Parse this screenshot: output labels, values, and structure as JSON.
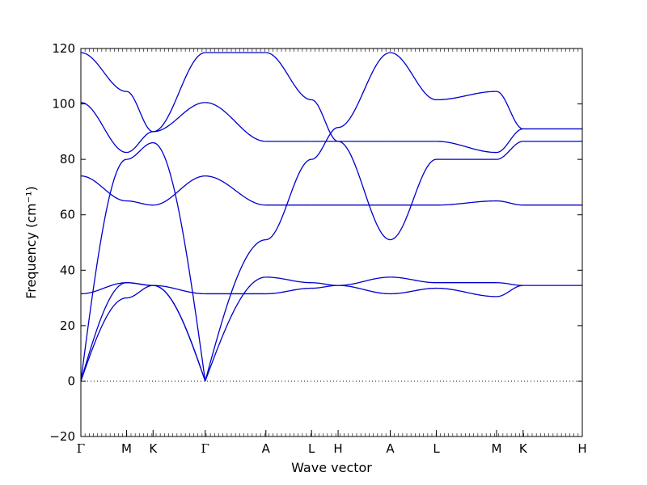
{
  "chart_data": {
    "type": "line",
    "xlabel": "Wave vector",
    "ylabel": "Frequency (cm⁻¹)",
    "ylim": [
      -20,
      120
    ],
    "xlim": [
      0,
      1.0
    ],
    "y_ticks": [
      -20,
      0,
      20,
      40,
      60,
      80,
      100,
      120
    ],
    "zero_line": "dotted",
    "grid": false,
    "line_color": "#0000cc",
    "x_ticks": [
      {
        "label": "Γ",
        "x": 0.0
      },
      {
        "label": "M",
        "x": 0.091
      },
      {
        "label": "K",
        "x": 0.144
      },
      {
        "label": "Γ",
        "x": 0.248
      },
      {
        "label": "A",
        "x": 0.369
      },
      {
        "label": "L",
        "x": 0.46
      },
      {
        "label": "H",
        "x": 0.513
      },
      {
        "label": "A",
        "x": 0.617
      },
      {
        "label": "L",
        "x": 0.709
      },
      {
        "label": "M",
        "x": 0.829
      },
      {
        "label": "K",
        "x": 0.882
      },
      {
        "label": "H",
        "x": 1.0
      }
    ],
    "segments": [
      {
        "name": "Γ-M",
        "x_range": [
          0.0,
          0.091
        ],
        "bands": [
          {
            "start": 0,
            "end": 30.0,
            "shape": "acoustic"
          },
          {
            "start": 0,
            "end": 35.5,
            "shape": "acoustic"
          },
          {
            "start": 0,
            "end": 80.0,
            "shape": "acoustic"
          },
          {
            "start": 31.5,
            "end": 35.5
          },
          {
            "start": 74.0,
            "end": 65.0
          },
          {
            "start": 100.5,
            "end": 82.5
          },
          {
            "start": 118.5,
            "end": 104.5
          }
        ]
      },
      {
        "name": "M-K",
        "x_range": [
          0.091,
          0.144
        ],
        "bands": [
          {
            "start": 30.0,
            "end": 34.5
          },
          {
            "start": 35.5,
            "end": 34.5
          },
          {
            "start": 80.0,
            "end": 86.0
          },
          {
            "start": 35.5,
            "end": 34.5
          },
          {
            "start": 65.0,
            "end": 63.5
          },
          {
            "start": 82.5,
            "end": 90.0
          },
          {
            "start": 104.5,
            "end": 90.0
          }
        ]
      },
      {
        "name": "K-Γ",
        "x_range": [
          0.144,
          0.248
        ],
        "bands": [
          {
            "start": 34.5,
            "end": 0,
            "shape": "acoustic-rev"
          },
          {
            "start": 34.5,
            "end": 0,
            "shape": "acoustic-rev"
          },
          {
            "start": 86.0,
            "end": 0,
            "shape": "acoustic-rev"
          },
          {
            "start": 34.5,
            "end": 31.5
          },
          {
            "start": 63.5,
            "end": 74.0
          },
          {
            "start": 90.0,
            "end": 100.5
          },
          {
            "start": 90.0,
            "end": 118.5
          }
        ]
      },
      {
        "name": "Γ-A",
        "x_range": [
          0.248,
          0.369
        ],
        "bands": [
          {
            "start": 0,
            "end": 37.5,
            "shape": "acoustic"
          },
          {
            "start": 0,
            "end": 51.0,
            "shape": "acoustic"
          },
          {
            "start": 118.5,
            "end": 118.5
          },
          {
            "start": 31.5,
            "end": 31.5
          },
          {
            "start": 74.0,
            "end": 63.5
          },
          {
            "start": 100.5,
            "end": 86.5
          }
        ]
      },
      {
        "name": "A-L",
        "x_range": [
          0.369,
          0.46
        ],
        "bands": [
          {
            "start": 37.5,
            "end": 35.5
          },
          {
            "start": 31.5,
            "end": 33.5
          },
          {
            "start": 51.0,
            "end": 80.0
          },
          {
            "start": 118.5,
            "end": 101.5
          },
          {
            "start": 63.5,
            "end": 63.5
          },
          {
            "start": 86.5,
            "end": 86.5
          }
        ]
      },
      {
        "name": "L-H",
        "x_range": [
          0.46,
          0.513
        ],
        "bands": [
          {
            "start": 35.5,
            "end": 34.5
          },
          {
            "start": 33.5,
            "end": 34.5
          },
          {
            "start": 80.0,
            "end": 91.5
          },
          {
            "start": 101.5,
            "end": 86.5
          },
          {
            "start": 63.5,
            "end": 63.5
          },
          {
            "start": 86.5,
            "end": 86.5
          }
        ]
      },
      {
        "name": "H-A",
        "x_range": [
          0.513,
          0.617
        ],
        "bands": [
          {
            "start": 34.5,
            "end": 37.5
          },
          {
            "start": 34.5,
            "end": 31.5
          },
          {
            "start": 91.5,
            "end": 118.5
          },
          {
            "start": 86.5,
            "end": 51.0
          },
          {
            "start": 63.5,
            "end": 63.5
          },
          {
            "start": 86.5,
            "end": 86.5
          }
        ]
      },
      {
        "name": "A-L",
        "x_range": [
          0.617,
          0.709
        ],
        "bands": [
          {
            "start": 37.5,
            "end": 35.5
          },
          {
            "start": 31.5,
            "end": 33.5
          },
          {
            "start": 118.5,
            "end": 101.5
          },
          {
            "start": 51.0,
            "end": 80.0
          },
          {
            "start": 63.5,
            "end": 63.5
          },
          {
            "start": 86.5,
            "end": 86.5
          }
        ]
      },
      {
        "name": "L-M",
        "x_range": [
          0.709,
          0.829
        ],
        "bands": [
          {
            "start": 35.5,
            "end": 35.5
          },
          {
            "start": 33.5,
            "end": 30.5
          },
          {
            "start": 63.5,
            "end": 65.0
          },
          {
            "start": 80.0,
            "end": 80.0
          },
          {
            "start": 86.5,
            "end": 82.5
          },
          {
            "start": 101.5,
            "end": 104.5
          }
        ]
      },
      {
        "name": "M-K",
        "x_range": [
          0.829,
          0.882
        ],
        "bands": [
          {
            "start": 35.5,
            "end": 34.5
          },
          {
            "start": 30.5,
            "end": 34.5
          },
          {
            "start": 65.0,
            "end": 63.5
          },
          {
            "start": 80.0,
            "end": 86.5
          },
          {
            "start": 82.5,
            "end": 91.0
          },
          {
            "start": 104.5,
            "end": 91.0
          }
        ]
      },
      {
        "name": "K-H",
        "x_range": [
          0.882,
          1.0
        ],
        "bands": [
          {
            "start": 34.5,
            "end": 34.5
          },
          {
            "start": 63.5,
            "end": 63.5
          },
          {
            "start": 86.5,
            "end": 86.5
          },
          {
            "start": 91.0,
            "end": 91.0
          }
        ]
      }
    ]
  }
}
